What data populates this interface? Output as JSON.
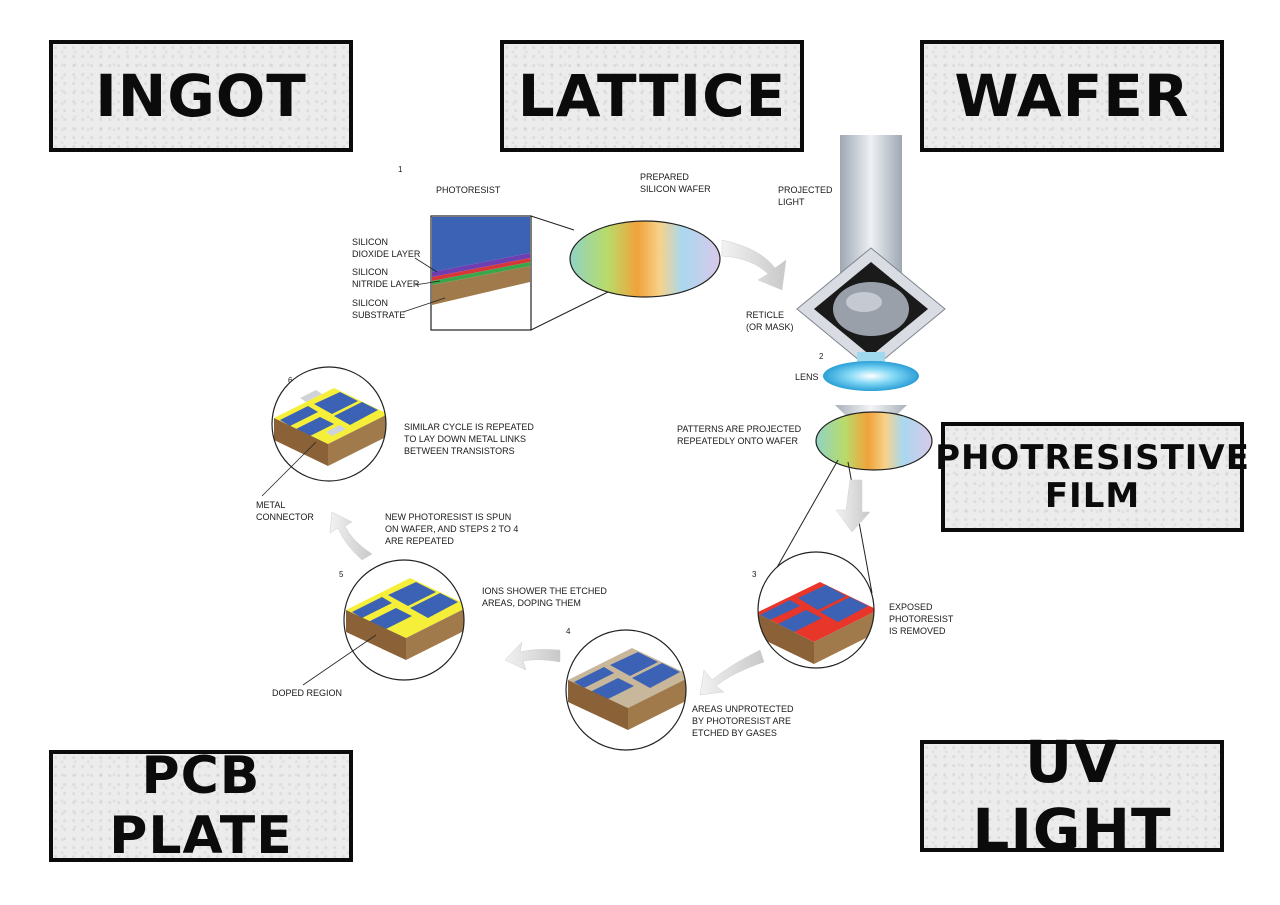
{
  "tiles": {
    "ingot": "INGOT",
    "lattice": "LATTICE",
    "wafer": "WAFER",
    "photoresistive": [
      "PHOTRESISTIVE",
      "FILM"
    ],
    "pcb_plate": "PCB PLATE",
    "uv_light": "UV LIGHT"
  },
  "diagram": {
    "steps": [
      "1",
      "2",
      "3",
      "4",
      "5",
      "6"
    ],
    "layers": {
      "photoresist": "PHOTORESIST",
      "silicon_dioxide": [
        "SILICON",
        "DIOXIDE LAYER"
      ],
      "silicon_nitride": [
        "SILICON",
        "NITRIDE LAYER"
      ],
      "silicon_substrate": [
        "SILICON",
        "SUBSTRATE"
      ]
    },
    "prepared_wafer": [
      "PREPARED",
      "SILICON WAFER"
    ],
    "projected_light": [
      "PROJECTED",
      "LIGHT"
    ],
    "reticle": [
      "RETICLE",
      "(OR MASK)"
    ],
    "lens": "LENS",
    "patterns_projected": [
      "PATTERNS ARE PROJECTED",
      "REPEATEDLY ONTO WAFER"
    ],
    "exposed_removed": [
      "EXPOSED",
      "PHOTORESIST",
      "IS REMOVED"
    ],
    "etched_by_gases": [
      "AREAS UNPROTECTED",
      "BY PHOTORESIST ARE",
      "ETCHED BY GASES"
    ],
    "ions_shower": [
      "IONS SHOWER THE ETCHED",
      "AREAS, DOPING THEM"
    ],
    "doped_region": "DOPED REGION",
    "new_photoresist": [
      "NEW PHOTORESIST IS SPUN",
      "ON WAFER, AND STEPS 2 TO 4",
      "ARE REPEATED"
    ],
    "similar_cycle": [
      "SIMILAR CYCLE IS REPEATED",
      "TO LAY DOWN METAL LINKS",
      "BETWEEN TRANSISTORS"
    ],
    "metal_connector": [
      "METAL",
      "CONNECTOR"
    ]
  },
  "colors": {
    "photoresist_blue": "#3b62b4",
    "exposed_red": "#e8362a",
    "doped_yellow": "#f5ef3a",
    "substrate_brown": "#a07a4a",
    "etched_tan": "#c9b79c"
  }
}
